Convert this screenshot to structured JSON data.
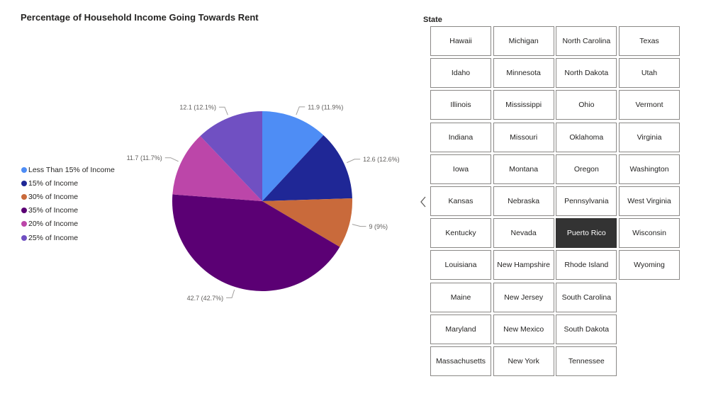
{
  "chart_data": {
    "type": "pie",
    "title": "Percentage of Household Income Going Towards Rent",
    "categories": [
      "Less Than 15% of Income",
      "15% of Income",
      "30% of Income",
      "35% of Income",
      "20% of Income",
      "25% of Income"
    ],
    "values": [
      11.9,
      12.6,
      9,
      42.7,
      11.7,
      12.1
    ],
    "labels": [
      "11.9 (11.9%)",
      "12.6 (12.6%)",
      "9 (9%)",
      "42.7 (42.7%)",
      "11.7 (11.7%)",
      "12.1 (12.1%)"
    ],
    "colors": [
      "#4e8df5",
      "#1f2796",
      "#c96a3b",
      "#5b0074",
      "#bc46a9",
      "#7050c2"
    ],
    "legend_position": "left"
  },
  "slicer": {
    "title": "State",
    "selected": "Puerto Rico",
    "columns": [
      [
        "Hawaii",
        "Idaho",
        "Illinois",
        "Indiana",
        "Iowa",
        "Kansas",
        "Kentucky",
        "Louisiana",
        "Maine",
        "Maryland",
        "Massachusetts"
      ],
      [
        "Michigan",
        "Minnesota",
        "Mississippi",
        "Missouri",
        "Montana",
        "Nebraska",
        "Nevada",
        "New Hampshire",
        "New Jersey",
        "New Mexico",
        "New York"
      ],
      [
        "North Carolina",
        "North Dakota",
        "Ohio",
        "Oklahoma",
        "Oregon",
        "Pennsylvania",
        "Puerto Rico",
        "Rhode Island",
        "South Carolina",
        "South Dakota",
        "Tennessee"
      ],
      [
        "Texas",
        "Utah",
        "Vermont",
        "Virginia",
        "Washington",
        "West Virginia",
        "Wisconsin",
        "Wyoming"
      ]
    ]
  },
  "icons": {
    "prev": "chevron-left-icon"
  }
}
